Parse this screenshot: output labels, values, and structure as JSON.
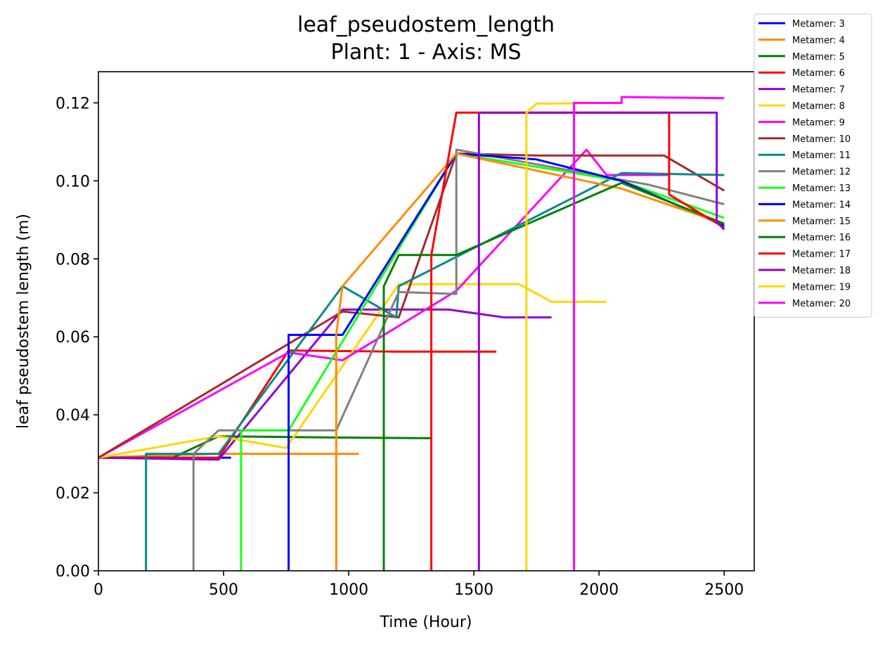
{
  "chart_data": {
    "type": "line",
    "title": "leaf_pseudostem_length",
    "subtitle": "Plant: 1 - Axis: MS",
    "xlabel": "Time (Hour)",
    "ylabel": "leaf pseudostem length (m)",
    "xlim": [
      0,
      2620
    ],
    "ylim": [
      0,
      0.128
    ],
    "xticks": [
      0,
      500,
      1000,
      1500,
      2000,
      2500
    ],
    "xtick_labels": [
      "0",
      "500",
      "1000",
      "1500",
      "2000",
      "2500"
    ],
    "yticks": [
      0,
      0.02,
      0.04,
      0.06,
      0.08,
      0.1,
      0.12
    ],
    "ytick_labels": [
      "0.00",
      "0.02",
      "0.04",
      "0.06",
      "0.08",
      "0.10",
      "0.12"
    ],
    "grid": false,
    "legend_position": "outside-top-right",
    "series": [
      {
        "name": "Metamer: 3",
        "color": "#0000ff",
        "points": [
          [
            0,
            0.029
          ],
          [
            210,
            0.029
          ],
          [
            530,
            0.029
          ]
        ]
      },
      {
        "name": "Metamer: 4",
        "color": "#ff8c00",
        "points": [
          [
            0,
            0.029
          ],
          [
            210,
            0.0295
          ],
          [
            480,
            0.03
          ],
          [
            1040,
            0.03
          ]
        ]
      },
      {
        "name": "Metamer: 5",
        "color": "#008000",
        "points": [
          [
            0,
            0.029
          ],
          [
            300,
            0.0291
          ],
          [
            480,
            0.0345
          ],
          [
            900,
            0.0342
          ],
          [
            1330,
            0.034
          ]
        ]
      },
      {
        "name": "Metamer: 6",
        "color": "#ff0000",
        "points": [
          [
            0,
            0.029
          ],
          [
            480,
            0.029
          ],
          [
            760,
            0.0565
          ],
          [
            1200,
            0.0562
          ],
          [
            1590,
            0.0562
          ]
        ]
      },
      {
        "name": "Metamer: 7",
        "color": "#9400d3",
        "points": [
          [
            0,
            0.029
          ],
          [
            480,
            0.0285
          ],
          [
            975,
            0.067
          ],
          [
            1400,
            0.067
          ],
          [
            1620,
            0.065
          ],
          [
            1810,
            0.065
          ]
        ]
      },
      {
        "name": "Metamer: 8",
        "color": "#ffd700",
        "points": [
          [
            0,
            0.029
          ],
          [
            480,
            0.0345
          ],
          [
            750,
            0.0315
          ],
          [
            1200,
            0.0735
          ],
          [
            1680,
            0.0735
          ],
          [
            1810,
            0.069
          ],
          [
            2030,
            0.069
          ]
        ]
      },
      {
        "name": "Metamer: 9",
        "color": "#ff00ff",
        "points": [
          [
            0,
            0.029
          ],
          [
            760,
            0.056
          ],
          [
            975,
            0.054
          ],
          [
            1430,
            0.0718
          ],
          [
            1950,
            0.108
          ],
          [
            2030,
            0.1015
          ],
          [
            2280,
            0.1015
          ]
        ]
      },
      {
        "name": "Metamer: 10",
        "color": "#a52a2a",
        "points": [
          [
            0,
            0.029
          ],
          [
            975,
            0.0665
          ],
          [
            1200,
            0.065
          ],
          [
            1430,
            0.107
          ],
          [
            1750,
            0.1065
          ],
          [
            2260,
            0.1065
          ],
          [
            2500,
            0.0975
          ]
        ]
      },
      {
        "name": "Metamer: 11",
        "color": "#008b8b",
        "points": [
          [
            190,
            0
          ],
          [
            190,
            0.03
          ],
          [
            480,
            0.03
          ],
          [
            975,
            0.073
          ],
          [
            1190,
            0.065
          ],
          [
            1200,
            0.073
          ],
          [
            2090,
            0.102
          ],
          [
            2500,
            0.1015
          ]
        ]
      },
      {
        "name": "Metamer: 12",
        "color": "#808080",
        "points": [
          [
            380,
            0
          ],
          [
            380,
            0.03
          ],
          [
            480,
            0.036
          ],
          [
            950,
            0.036
          ],
          [
            1200,
            0.0715
          ],
          [
            1430,
            0.071
          ],
          [
            1430,
            0.108
          ],
          [
            2200,
            0.099
          ],
          [
            2500,
            0.094
          ]
        ]
      },
      {
        "name": "Metamer: 13",
        "color": "#19ff19",
        "points": [
          [
            570,
            0
          ],
          [
            570,
            0.036
          ],
          [
            760,
            0.036
          ],
          [
            1430,
            0.107
          ],
          [
            2090,
            0.1
          ],
          [
            2500,
            0.0905
          ]
        ]
      },
      {
        "name": "Metamer: 14",
        "color": "#0000ff",
        "points": [
          [
            760,
            0
          ],
          [
            760,
            0.0605
          ],
          [
            975,
            0.0605
          ],
          [
            1430,
            0.107
          ],
          [
            1750,
            0.1055
          ],
          [
            2090,
            0.1
          ],
          [
            2500,
            0.0885
          ]
        ]
      },
      {
        "name": "Metamer: 15",
        "color": "#ff8c00",
        "points": [
          [
            950,
            0
          ],
          [
            950,
            0.0605
          ],
          [
            975,
            0.073
          ],
          [
            1430,
            0.107
          ],
          [
            2090,
            0.098
          ],
          [
            2500,
            0.089
          ]
        ]
      },
      {
        "name": "Metamer: 16",
        "color": "#008000",
        "points": [
          [
            1140,
            0
          ],
          [
            1140,
            0.073
          ],
          [
            1200,
            0.081
          ],
          [
            1430,
            0.081
          ],
          [
            2090,
            0.0995
          ],
          [
            2500,
            0.089
          ]
        ]
      },
      {
        "name": "Metamer: 17",
        "color": "#ff0000",
        "points": [
          [
            1330,
            0
          ],
          [
            1330,
            0.081
          ],
          [
            1430,
            0.1175
          ],
          [
            2280,
            0.1175
          ],
          [
            2280,
            0.0965
          ],
          [
            2500,
            0.088
          ]
        ]
      },
      {
        "name": "Metamer: 18",
        "color": "#9400d3",
        "points": [
          [
            1520,
            0
          ],
          [
            1520,
            0.1175
          ],
          [
            2470,
            0.1175
          ],
          [
            2470,
            0.0895
          ],
          [
            2500,
            0.0875
          ]
        ]
      },
      {
        "name": "Metamer: 19",
        "color": "#ffd700",
        "points": [
          [
            1710,
            0
          ],
          [
            1710,
            0.1175
          ],
          [
            1750,
            0.1198
          ],
          [
            2090,
            0.12
          ]
        ]
      },
      {
        "name": "Metamer: 20",
        "color": "#ff00ff",
        "points": [
          [
            1900,
            0
          ],
          [
            1900,
            0.12
          ],
          [
            2090,
            0.12
          ],
          [
            2090,
            0.1215
          ],
          [
            2500,
            0.1212
          ]
        ]
      }
    ]
  }
}
